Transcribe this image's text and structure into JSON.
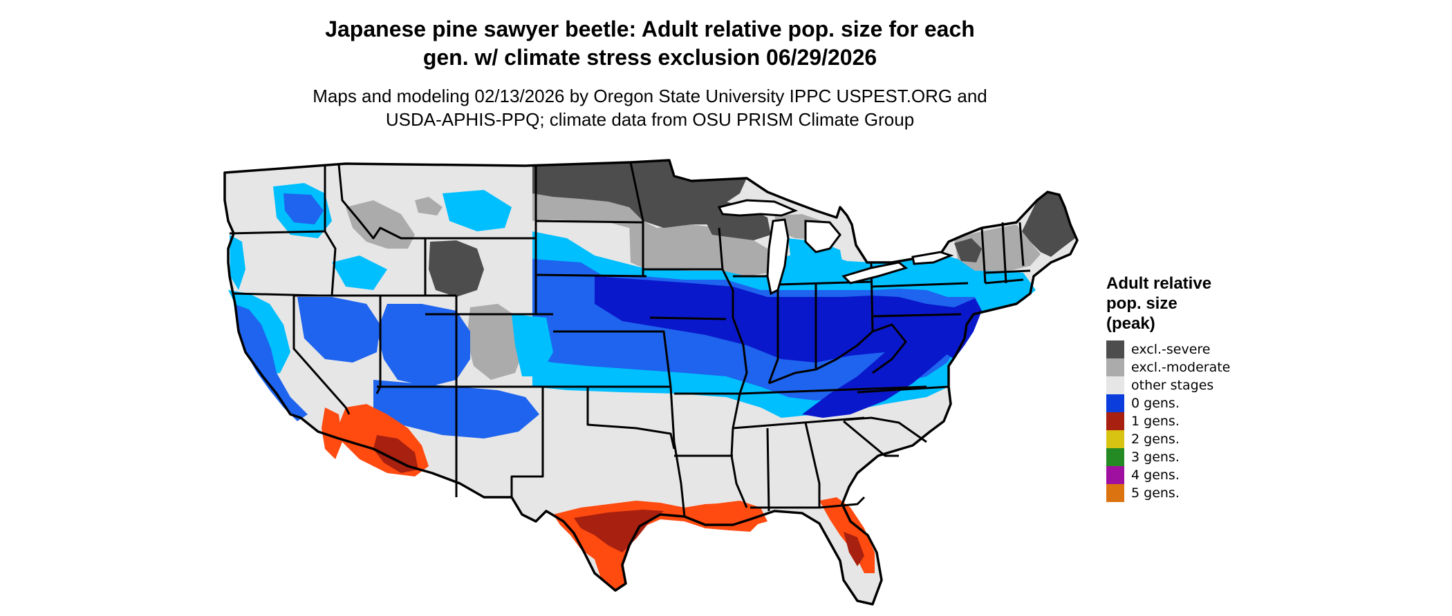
{
  "title_line1": "Japanese pine sawyer beetle: Adult relative pop. size for each",
  "title_line2": "gen. w/ climate stress exclusion 06/29/2026",
  "subtitle_line1": "Maps and modeling 02/13/2026 by Oregon State University IPPC USPEST.ORG and",
  "subtitle_line2": "USDA-APHIS-PPQ; climate data from OSU PRISM Climate Group",
  "legend": {
    "title_line1": "Adult relative",
    "title_line2": "pop. size",
    "title_line3": "(peak)",
    "items": [
      {
        "label": "excl.-severe",
        "color": "#4d4d4d"
      },
      {
        "label": "excl.-moderate",
        "color": "#ababab"
      },
      {
        "label": "other stages",
        "color": "#e6e6e6"
      },
      {
        "label": "0 gens.",
        "color": "#0a3ddb"
      },
      {
        "label": "1 gens.",
        "color": "#a8200f"
      },
      {
        "label": "2 gens.",
        "color": "#d9c312"
      },
      {
        "label": "3 gens.",
        "color": "#248a24"
      },
      {
        "label": "4 gens.",
        "color": "#a010a0"
      },
      {
        "label": "5 gens.",
        "color": "#db7410"
      }
    ]
  },
  "map_colors": {
    "other_stages": "#e6e6e6",
    "excl_moderate": "#ababab",
    "excl_severe": "#4d4d4d",
    "gen0_light": "#00bfff",
    "gen0_mid": "#1e64ee",
    "gen0_dark": "#0a18cc",
    "gen1_light": "#ff4a10",
    "gen1_dark": "#a8200f",
    "border": "#000000"
  }
}
